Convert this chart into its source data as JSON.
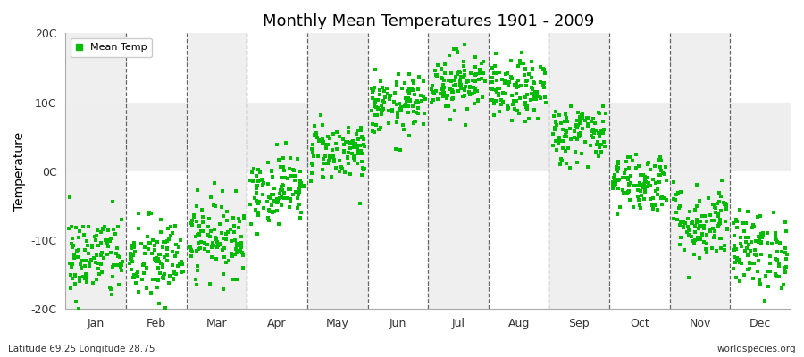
{
  "title": "Monthly Mean Temperatures 1901 - 2009",
  "ylabel": "Temperature",
  "footer_left": "Latitude 69.25 Longitude 28.75",
  "footer_right": "worldspecies.org",
  "legend_label": "Mean Temp",
  "ylim": [
    -20,
    20
  ],
  "yticks": [
    -20,
    -10,
    0,
    10,
    20
  ],
  "ytick_labels": [
    "-20C",
    "-10C",
    "0C",
    "10C",
    "20C"
  ],
  "months": [
    "Jan",
    "Feb",
    "Mar",
    "Apr",
    "May",
    "Jun",
    "Jul",
    "Aug",
    "Sep",
    "Oct",
    "Nov",
    "Dec"
  ],
  "dot_color": "#00BB00",
  "plot_bg": "#FFFFFF",
  "fig_bg": "#FFFFFF",
  "band_color_light": "#EFEFEF",
  "horiz_band_color": "#EEEEEE",
  "n_years": 109,
  "monthly_means": [
    -12.5,
    -13.0,
    -9.5,
    -2.5,
    3.0,
    9.5,
    13.0,
    11.5,
    5.5,
    -1.5,
    -7.5,
    -11.5
  ],
  "monthly_stds": [
    3.2,
    3.2,
    2.8,
    2.5,
    2.2,
    2.2,
    2.2,
    2.2,
    2.2,
    2.2,
    2.8,
    2.8
  ]
}
